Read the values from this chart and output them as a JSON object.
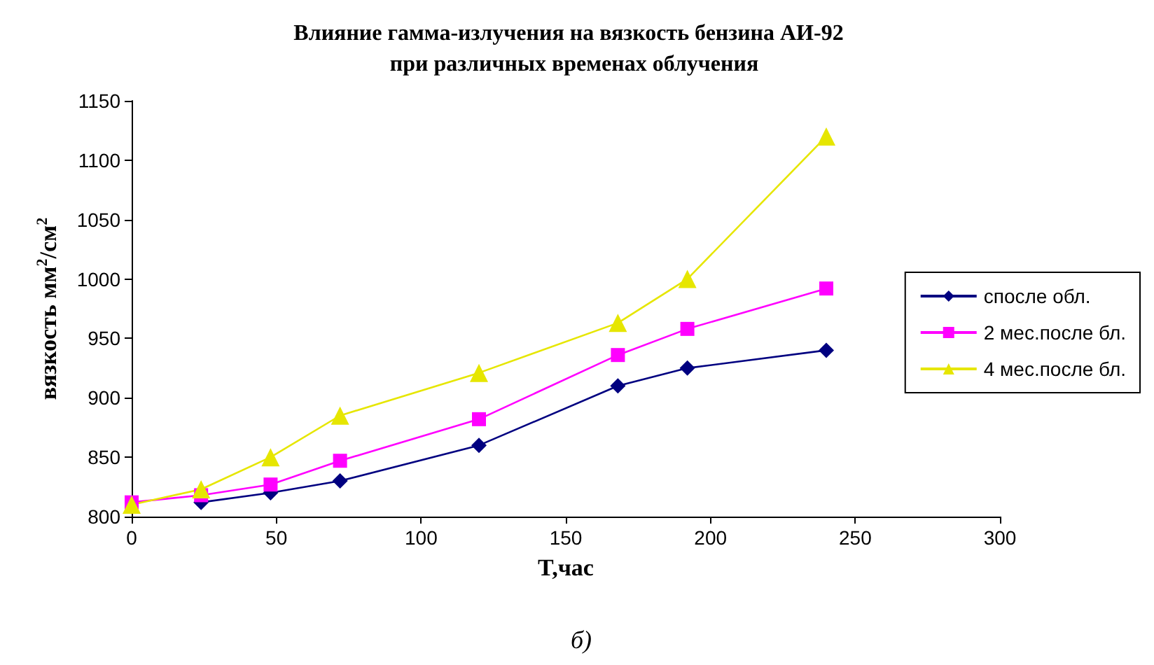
{
  "chart_data": {
    "type": "line",
    "title": "Влияние гамма-излучения на вязкость бензина АИ-92  при различных временах облучения",
    "xlabel": "T,час",
    "ylabel": "вязкость мм$^{2}$/см$^{2}$",
    "annotations": [
      "б)"
    ],
    "x": [
      0,
      24,
      48,
      72,
      120,
      168,
      192,
      240
    ],
    "series": [
      {
        "name": "спосле обл.",
        "color": "#000080",
        "marker": "diamond",
        "values": [
          null,
          812,
          820,
          830,
          860,
          910,
          925,
          940
        ]
      },
      {
        "name": "2 мес.после бл.",
        "color": "#ff00ff",
        "marker": "square",
        "values": [
          812,
          818,
          827,
          847,
          882,
          936,
          958,
          992
        ]
      },
      {
        "name": "4 мес.после бл.",
        "color": "#e6e600",
        "marker": "triangle",
        "values": [
          810,
          823,
          850,
          885,
          921,
          963,
          1000,
          1120
        ]
      }
    ],
    "xlim": [
      0,
      300
    ],
    "xticks": [
      0,
      50,
      100,
      150,
      200,
      250,
      300
    ],
    "ylim": [
      800,
      1150
    ],
    "yticks": [
      800,
      850,
      900,
      950,
      1000,
      1050,
      1100,
      1150
    ],
    "grid": false,
    "legend": "right"
  }
}
